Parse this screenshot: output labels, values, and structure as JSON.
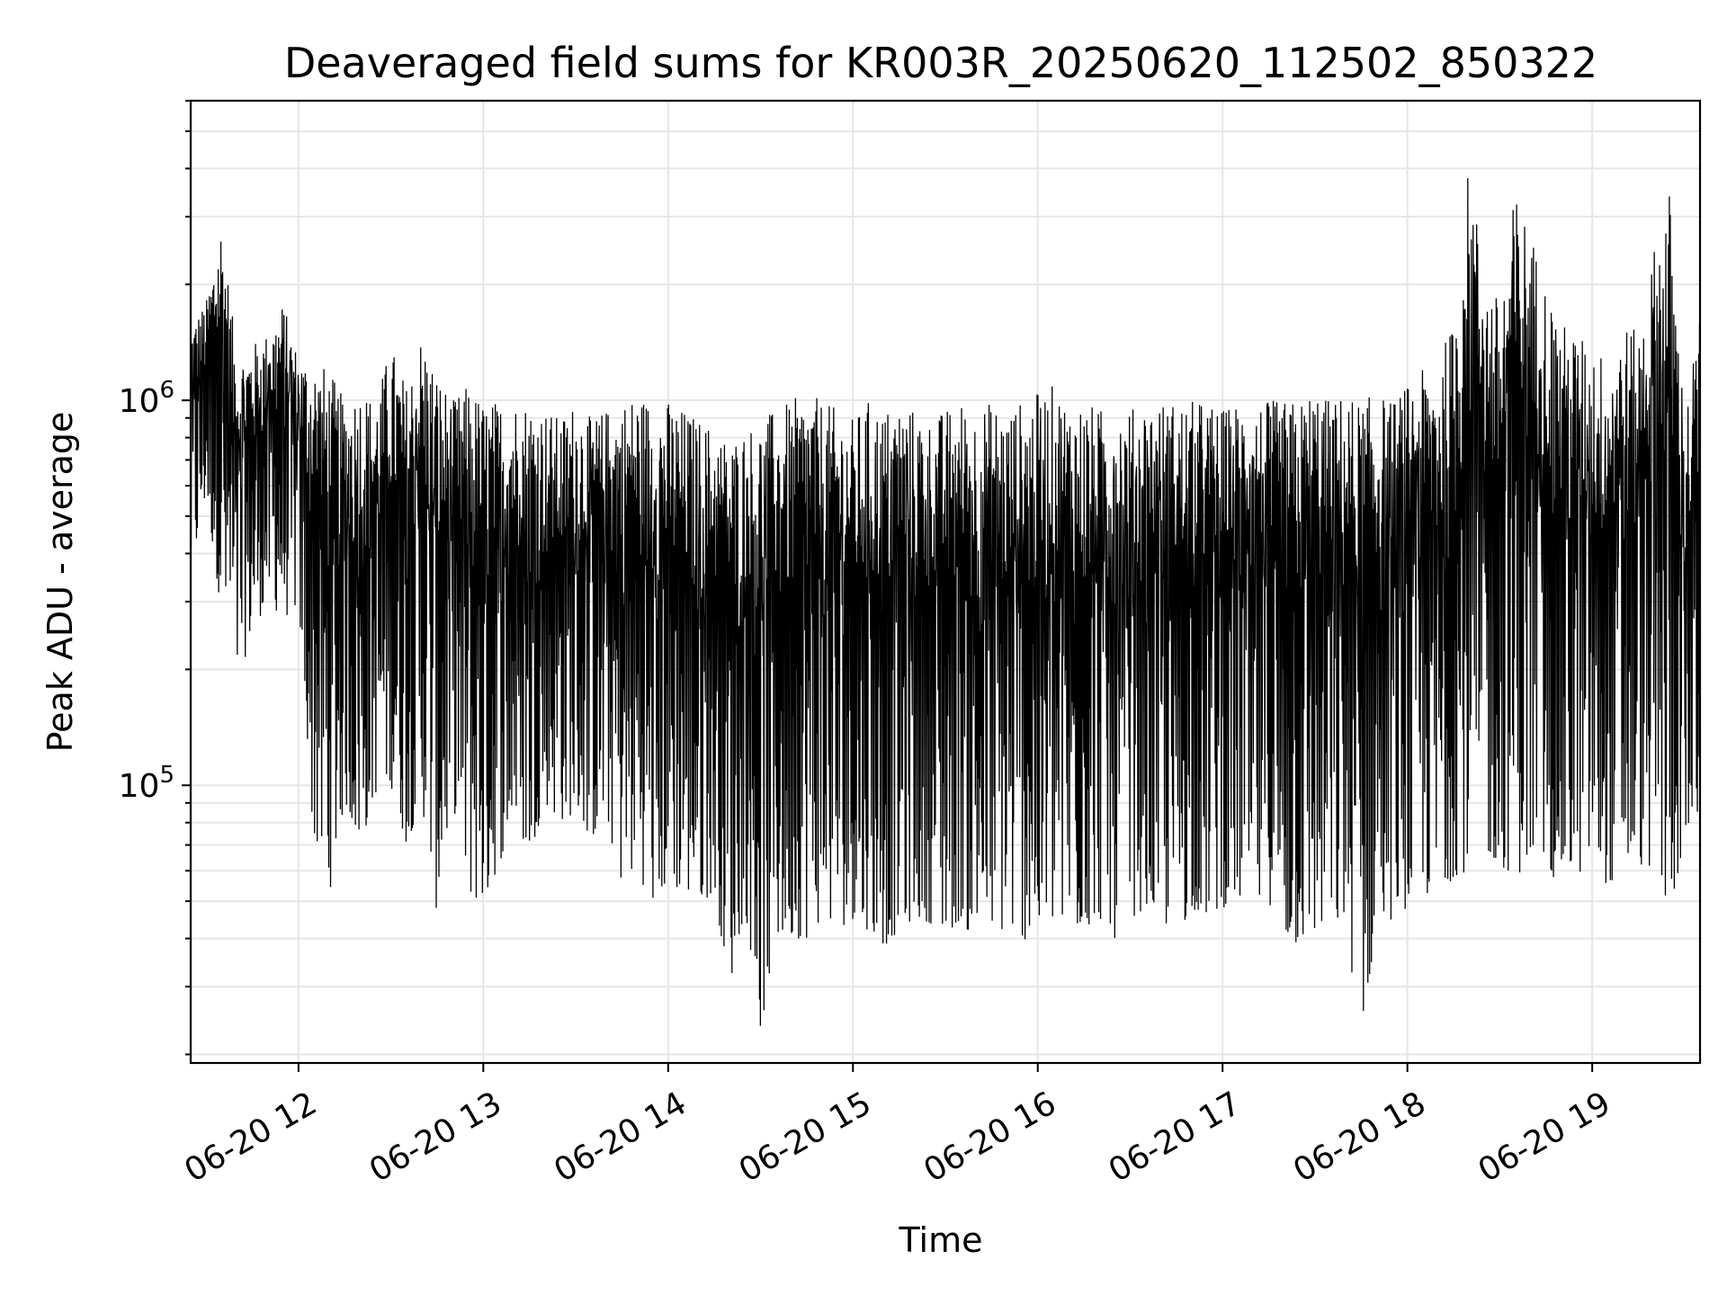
{
  "chart_data": {
    "type": "line",
    "title": "Deaveraged field sums for KR003R_20250620_112502_850322",
    "xlabel": "Time",
    "ylabel": "Peak ADU - average",
    "yscale": "log",
    "xlim": [
      "2025-06-20 11:25",
      "2025-06-20 19:35"
    ],
    "ylim": [
      19000,
      6000000
    ],
    "grid": true,
    "legend": "none",
    "line_color": "#000000",
    "x_ticks": [
      {
        "value": "2025-06-20 12:00",
        "label": "06-20 12"
      },
      {
        "value": "2025-06-20 13:00",
        "label": "06-20 13"
      },
      {
        "value": "2025-06-20 14:00",
        "label": "06-20 14"
      },
      {
        "value": "2025-06-20 15:00",
        "label": "06-20 15"
      },
      {
        "value": "2025-06-20 16:00",
        "label": "06-20 16"
      },
      {
        "value": "2025-06-20 17:00",
        "label": "06-20 17"
      },
      {
        "value": "2025-06-20 18:00",
        "label": "06-20 18"
      },
      {
        "value": "2025-06-20 19:00",
        "label": "06-20 19"
      }
    ],
    "y_ticks": [
      {
        "value": 100000,
        "label_base": "10",
        "label_exp": "5"
      },
      {
        "value": 1000000,
        "label_base": "10",
        "label_exp": "6"
      }
    ],
    "series": [
      {
        "x": [
          "2025-06-20 11:25",
          "2025-06-20 11:30",
          "2025-06-20 11:35",
          "2025-06-20 11:40",
          "2025-06-20 11:45",
          "2025-06-20 11:50",
          "2025-06-20 11:55",
          "2025-06-20 12:00",
          "2025-06-20 12:05",
          "2025-06-20 12:10",
          "2025-06-20 12:15",
          "2025-06-20 12:20",
          "2025-06-20 12:25",
          "2025-06-20 12:30",
          "2025-06-20 12:35",
          "2025-06-20 12:40",
          "2025-06-20 12:45",
          "2025-06-20 12:50",
          "2025-06-20 12:55",
          "2025-06-20 13:00",
          "2025-06-20 13:05",
          "2025-06-20 13:10",
          "2025-06-20 13:15",
          "2025-06-20 13:20",
          "2025-06-20 13:25",
          "2025-06-20 13:30",
          "2025-06-20 13:35",
          "2025-06-20 13:40",
          "2025-06-20 13:45",
          "2025-06-20 13:50",
          "2025-06-20 13:55",
          "2025-06-20 14:00",
          "2025-06-20 14:05",
          "2025-06-20 14:10",
          "2025-06-20 14:15",
          "2025-06-20 14:20",
          "2025-06-20 14:25",
          "2025-06-20 14:30",
          "2025-06-20 14:35",
          "2025-06-20 14:40",
          "2025-06-20 14:45",
          "2025-06-20 14:50",
          "2025-06-20 14:55",
          "2025-06-20 15:00",
          "2025-06-20 15:05",
          "2025-06-20 15:10",
          "2025-06-20 15:15",
          "2025-06-20 15:20",
          "2025-06-20 15:25",
          "2025-06-20 15:30",
          "2025-06-20 15:35",
          "2025-06-20 15:40",
          "2025-06-20 15:45",
          "2025-06-20 15:50",
          "2025-06-20 15:55",
          "2025-06-20 16:00",
          "2025-06-20 16:05",
          "2025-06-20 16:10",
          "2025-06-20 16:15",
          "2025-06-20 16:20",
          "2025-06-20 16:25",
          "2025-06-20 16:30",
          "2025-06-20 16:35",
          "2025-06-20 16:40",
          "2025-06-20 16:45",
          "2025-06-20 16:50",
          "2025-06-20 16:55",
          "2025-06-20 17:00",
          "2025-06-20 17:05",
          "2025-06-20 17:10",
          "2025-06-20 17:15",
          "2025-06-20 17:20",
          "2025-06-20 17:25",
          "2025-06-20 17:30",
          "2025-06-20 17:35",
          "2025-06-20 17:40",
          "2025-06-20 17:45",
          "2025-06-20 17:50",
          "2025-06-20 17:55",
          "2025-06-20 18:00",
          "2025-06-20 18:05",
          "2025-06-20 18:10",
          "2025-06-20 18:15",
          "2025-06-20 18:20",
          "2025-06-20 18:25",
          "2025-06-20 18:30",
          "2025-06-20 18:35",
          "2025-06-20 18:40",
          "2025-06-20 18:45",
          "2025-06-20 18:50",
          "2025-06-20 18:55",
          "2025-06-20 19:00",
          "2025-06-20 19:05",
          "2025-06-20 19:10",
          "2025-06-20 19:15",
          "2025-06-20 19:20",
          "2025-06-20 19:25",
          "2025-06-20 19:30",
          "2025-06-20 19:35"
        ],
        "low": [
          330000,
          550000,
          280000,
          180000,
          250000,
          300000,
          270000,
          290000,
          70000,
          52000,
          90000,
          68000,
          95000,
          100000,
          70000,
          90000,
          46000,
          92000,
          52000,
          48000,
          62000,
          80000,
          65000,
          90000,
          80000,
          85000,
          72000,
          80000,
          55000,
          60000,
          48000,
          55000,
          52000,
          50000,
          52000,
          30000,
          48000,
          23000,
          38000,
          40000,
          40000,
          45000,
          42000,
          45000,
          42000,
          38000,
          42000,
          45000,
          44000,
          40000,
          45000,
          38000,
          42000,
          41000,
          40000,
          38000,
          43000,
          40000,
          42000,
          45000,
          40000,
          45000,
          48000,
          44000,
          40000,
          48000,
          45000,
          48000,
          50000,
          45000,
          50000,
          38000,
          38000,
          40000,
          42000,
          42000,
          22000,
          42000,
          45000,
          48000,
          52000,
          50000,
          58000,
          60000,
          65000,
          62000,
          58000,
          62000,
          60000,
          55000,
          58000,
          62000,
          55000,
          58000,
          62000,
          60000,
          45000,
          72000,
          75000
        ],
        "high": [
          1600000,
          1800000,
          3000000,
          1300000,
          1400000,
          1500000,
          1800000,
          1300000,
          1300000,
          1200000,
          1000000,
          1100000,
          1000000,
          1400000,
          1100000,
          1500000,
          1200000,
          1000000,
          1100000,
          1000000,
          1000000,
          1000000,
          1000000,
          950000,
          900000,
          1000000,
          900000,
          950000,
          1000000,
          1050000,
          1000000,
          1000000,
          950000,
          900000,
          850000,
          800000,
          850000,
          900000,
          950000,
          1000000,
          1050000,
          1000000,
          950000,
          900000,
          1000000,
          950000,
          1000000,
          950000,
          900000,
          950000,
          1000000,
          950000,
          1000000,
          950000,
          1000000,
          1050000,
          1100000,
          1000000,
          1000000,
          950000,
          1000000,
          950000,
          1000000,
          1000000,
          1000000,
          1000000,
          1000000,
          950000,
          1000000,
          1000000,
          1000000,
          1000000,
          1000000,
          1100000,
          1000000,
          1050000,
          1000000,
          1050000,
          1000000,
          1100000,
          1200000,
          1300000,
          1600000,
          4200000,
          2200000,
          1800000,
          3500000,
          2800000,
          2000000,
          1600000,
          1500000,
          1400000,
          1300000,
          1600000,
          1500000,
          2500000,
          3600000,
          900000,
          1700000
        ]
      }
    ]
  }
}
